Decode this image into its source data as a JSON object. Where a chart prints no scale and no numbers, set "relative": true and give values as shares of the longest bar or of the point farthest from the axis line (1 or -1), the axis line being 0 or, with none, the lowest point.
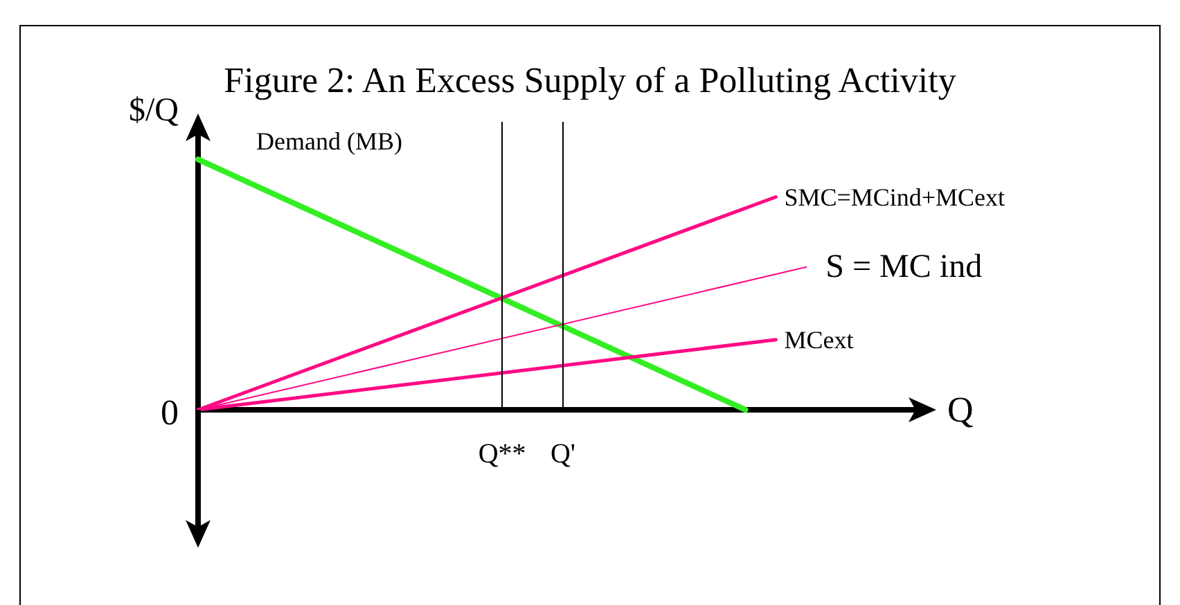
{
  "chart_data": {
    "type": "line",
    "title": "Figure 2: An Excess Supply of a Polluting Activity",
    "xlabel": "Q",
    "ylabel": "$/Q",
    "relative": true,
    "categories": [
      null,
      null,
      null,
      null,
      null,
      null,
      null,
      null,
      null,
      null,
      "Q**",
      null,
      "Q'",
      null,
      null,
      null,
      null,
      null,
      null,
      null,
      null,
      null,
      null,
      null,
      null
    ],
    "series": [
      {
        "name": "Demand (MB)",
        "color": "#33ee22",
        "values": [
          1,
          null,
          null,
          null,
          null,
          null,
          null,
          null,
          null,
          null,
          null,
          null,
          null,
          null,
          null,
          null,
          null,
          null,
          0,
          null,
          null,
          null,
          null,
          null,
          null
        ]
      },
      {
        "name": "SMC=MCind+MCext",
        "color": "#ff0a84",
        "values": [
          0,
          null,
          null,
          null,
          null,
          null,
          null,
          null,
          null,
          null,
          null,
          null,
          null,
          null,
          null,
          null,
          null,
          null,
          null,
          0.85,
          null,
          null,
          null,
          null,
          null
        ]
      },
      {
        "name": "S = MC ind",
        "color": "#ff0a84",
        "values": [
          0,
          null,
          null,
          null,
          null,
          null,
          null,
          null,
          null,
          null,
          null,
          null,
          null,
          null,
          null,
          null,
          null,
          null,
          null,
          null,
          0.57,
          null,
          null,
          null,
          null
        ]
      },
      {
        "name": "MCext",
        "color": "#ff0a84",
        "values": [
          0,
          null,
          null,
          null,
          null,
          null,
          null,
          null,
          null,
          null,
          null,
          null,
          null,
          null,
          null,
          null,
          null,
          null,
          null,
          0.28,
          null,
          null,
          null,
          null,
          null
        ]
      }
    ],
    "ref_lines": [
      {
        "axis": "x",
        "value": "Q**",
        "color": "#000000"
      },
      {
        "axis": "x",
        "value": "Q'",
        "color": "#000000"
      }
    ],
    "annotations": [
      "0"
    ],
    "marker": "none",
    "line_style": "solid"
  }
}
